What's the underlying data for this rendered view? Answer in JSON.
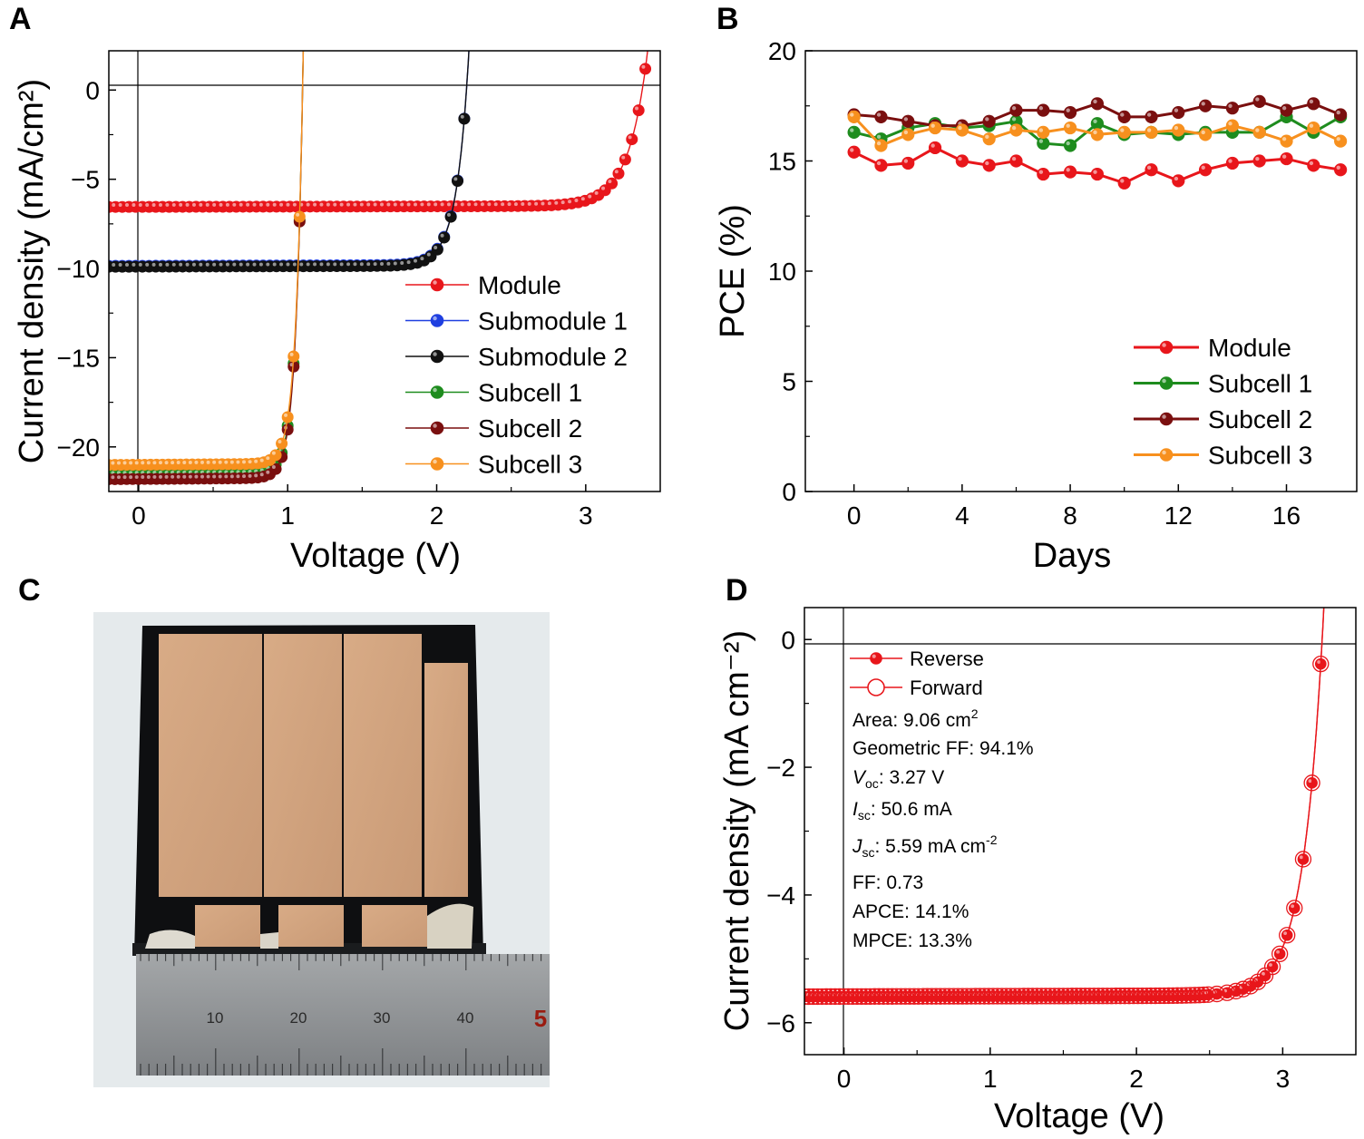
{
  "panels": {
    "a": "A",
    "b": "B",
    "c": "C",
    "d": "D"
  },
  "chart_data": [
    {
      "id": "A",
      "type": "line",
      "xlabel": "Voltage (V)",
      "ylabel": "Current density (mA/cm²)",
      "xlim": [
        -0.2,
        3.5
      ],
      "ylim": [
        -22.5,
        2.2
      ],
      "xticks": [
        0,
        1,
        2,
        3
      ],
      "yticks": [
        0,
        -5,
        -10,
        -15,
        -20
      ],
      "ytick_labels": [
        "0",
        "−5",
        "−10",
        "−15",
        "−20"
      ],
      "legend_position": "lower-right",
      "series": [
        {
          "name": "Module",
          "color": "#e8161b",
          "jsc": -6.55,
          "voc": 3.38,
          "n": 0.125,
          "slope": 0.1,
          "vmax": 3.46
        },
        {
          "name": "Submodule 1",
          "color": "#1f3fe0",
          "jsc": -9.85,
          "voc": 2.2,
          "n": 0.082,
          "slope": 0.14,
          "vmax": 2.26
        },
        {
          "name": "Submodule 2",
          "color": "#111111",
          "jsc": -9.9,
          "voc": 2.2,
          "n": 0.082,
          "slope": 0.14,
          "vmax": 2.24
        },
        {
          "name": "Subcell 1",
          "color": "#1e8c1e",
          "jsc": -21.55,
          "voc": 1.1,
          "n": 0.048,
          "slope": 0.35,
          "vmax": 1.12
        },
        {
          "name": "Subcell 2",
          "color": "#7a0f0f",
          "jsc": -21.8,
          "voc": 1.1,
          "n": 0.048,
          "slope": 0.35,
          "vmax": 1.12
        },
        {
          "name": "Subcell 3",
          "color": "#f7901e",
          "jsc": -21.0,
          "voc": 1.1,
          "n": 0.048,
          "slope": 0.35,
          "vmax": 1.12
        }
      ]
    },
    {
      "id": "B",
      "type": "line",
      "xlabel": "Days",
      "ylabel": "PCE (%)",
      "xlim": [
        -1.8,
        18.6
      ],
      "ylim": [
        0,
        20
      ],
      "xticks": [
        0,
        4,
        8,
        12,
        16
      ],
      "yticks": [
        0,
        5,
        10,
        15,
        20
      ],
      "legend_position": "lower-right",
      "x": [
        0,
        1,
        2,
        3,
        4,
        5,
        6,
        7,
        8,
        9,
        10,
        11,
        12,
        13,
        14,
        15,
        16,
        17,
        18
      ],
      "series": [
        {
          "name": "Module",
          "color": "#e8161b",
          "values": [
            15.4,
            14.8,
            14.9,
            15.6,
            15.0,
            14.8,
            15.0,
            14.4,
            14.5,
            14.4,
            14.0,
            14.6,
            14.1,
            14.6,
            14.9,
            15.0,
            15.1,
            14.8,
            14.6
          ]
        },
        {
          "name": "Subcell 1",
          "color": "#1e8c1e",
          "values": [
            16.3,
            16.0,
            16.5,
            16.7,
            16.5,
            16.6,
            16.8,
            15.8,
            15.7,
            16.7,
            16.2,
            16.3,
            16.2,
            16.3,
            16.3,
            16.3,
            17.0,
            16.3,
            17.0
          ]
        },
        {
          "name": "Subcell 2",
          "color": "#7a0f0f",
          "values": [
            17.1,
            17.0,
            16.8,
            16.6,
            16.6,
            16.8,
            17.3,
            17.3,
            17.2,
            17.6,
            17.0,
            17.0,
            17.2,
            17.5,
            17.4,
            17.7,
            17.3,
            17.6,
            17.1
          ]
        },
        {
          "name": "Subcell 3",
          "color": "#f7901e",
          "values": [
            17.0,
            15.7,
            16.2,
            16.5,
            16.4,
            16.0,
            16.4,
            16.3,
            16.5,
            16.2,
            16.3,
            16.3,
            16.4,
            16.2,
            16.6,
            16.3,
            15.9,
            16.5,
            15.9
          ]
        }
      ]
    },
    {
      "id": "D",
      "type": "line",
      "xlabel": "Voltage (V)",
      "ylabel": "Current density (mA cm⁻²)",
      "xlim": [
        -0.27,
        3.5
      ],
      "ylim": [
        -6.5,
        0.5
      ],
      "xticks": [
        0,
        1,
        2,
        3
      ],
      "yticks": [
        0,
        -2,
        -4,
        -6
      ],
      "ytick_labels": [
        "0",
        "−2",
        "−4",
        "−6"
      ],
      "legend_position": "upper-left",
      "series": [
        {
          "name": "Reverse",
          "color": "#e8161b",
          "marker": "filled",
          "jsc": -5.59,
          "voc": 3.27,
          "n": 0.135,
          "slope": 0.035,
          "vmax": 3.29
        },
        {
          "name": "Forward",
          "color": "#e8161b",
          "marker": "open",
          "jsc": -5.59,
          "voc": 3.27,
          "n": 0.135,
          "slope": 0.035,
          "vmax": 3.29
        }
      ],
      "annotations": {
        "area": "Area: 9.06 cm",
        "area_sup": "2",
        "geometric_ff": "Geometric FF: 94.1%",
        "voc_sym": "V",
        "voc_sub": "oc",
        "voc_val": ": 3.27 V",
        "isc_sym": "I",
        "isc_sub": "sc",
        "isc_val": ": 50.6 mA",
        "jsc_sym": "J",
        "jsc_sub": "sc",
        "jsc_val": ": 5.59 mA cm",
        "jsc_sup": "-2",
        "ff": "FF: 0.73",
        "apce": "APCE: 14.1%",
        "mpce": "MPCE: 13.3%"
      }
    }
  ],
  "photo": {
    "ruler_labels": [
      "10",
      "20",
      "30",
      "40",
      "5"
    ],
    "colors": {
      "background": "#e6ebed",
      "substrate": "#0e0f10",
      "electrode": "#d2a47f",
      "ruler": "#8f9294"
    }
  }
}
